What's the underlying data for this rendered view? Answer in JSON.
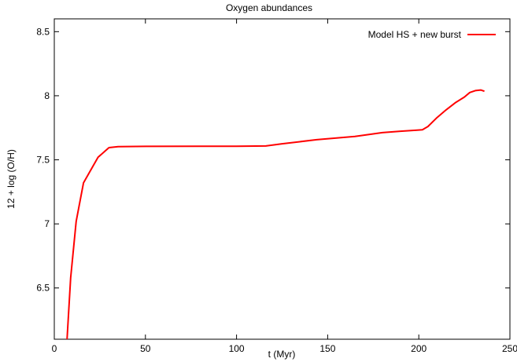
{
  "chart_data": {
    "type": "line",
    "title": "Oxygen abundances",
    "xlabel": "t (Myr)",
    "ylabel": "12 + log (O/H)",
    "xlim": [
      0,
      250
    ],
    "ylim": [
      6.1,
      8.6
    ],
    "xticks": [
      0,
      50,
      100,
      150,
      200,
      250
    ],
    "yticks": [
      6.5,
      7,
      7.5,
      8,
      8.5
    ],
    "xtick_labels": [
      "0",
      "50",
      "100",
      "150",
      "200",
      "250"
    ],
    "ytick_labels": [
      "6.5",
      "7",
      "7.5",
      "8",
      "8.5"
    ],
    "grid": false,
    "legend_position": "top-right",
    "series": [
      {
        "name": "Model HS + new burst",
        "color": "#ff0000",
        "x": [
          7,
          9,
          12,
          16,
          20,
          24,
          28,
          30,
          35,
          50,
          80,
          100,
          116,
          125,
          144,
          165,
          180,
          190,
          199,
          202,
          205,
          210,
          215,
          220,
          225,
          228,
          231,
          234,
          236
        ],
        "y": [
          6.1,
          6.58,
          7.02,
          7.32,
          7.42,
          7.52,
          7.57,
          7.595,
          7.603,
          7.605,
          7.606,
          7.606,
          7.608,
          7.625,
          7.657,
          7.683,
          7.712,
          7.723,
          7.732,
          7.735,
          7.76,
          7.83,
          7.89,
          7.945,
          7.99,
          8.025,
          8.04,
          8.045,
          8.035
        ]
      }
    ]
  }
}
